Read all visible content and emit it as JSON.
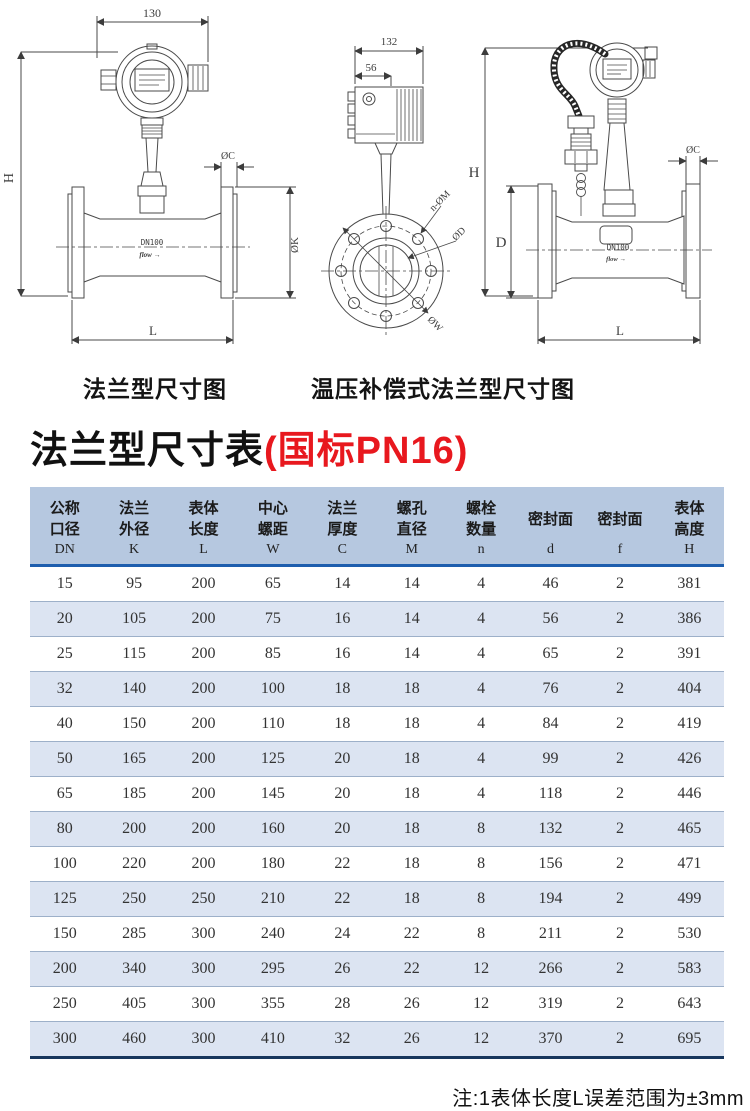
{
  "title": {
    "main": "法兰型尺寸表",
    "suffix": "(国标PN16)"
  },
  "captions": {
    "left": "法兰型尺寸图",
    "right": "温压补偿式法兰型尺寸图"
  },
  "drawing_labels": {
    "left": {
      "top_width": "130",
      "height": "H",
      "flange_thickness": "ØC",
      "flange_diameter": "ØK",
      "length": "L",
      "body": "DN100",
      "brand": "flow →"
    },
    "right": {
      "top_width": "132",
      "head_width": "56",
      "height": "H",
      "flange_od": "D",
      "flange_thickness": "ØC",
      "length": "L",
      "bolt_holes": "n-ØM",
      "bore": "ØD",
      "bolt_circle": "ØW",
      "body": "DN100",
      "brand": "flow →"
    }
  },
  "table": {
    "columns": [
      {
        "cn": [
          "公称",
          "口径"
        ],
        "symbol": "DN"
      },
      {
        "cn": [
          "法兰",
          "外径"
        ],
        "symbol": "K"
      },
      {
        "cn": [
          "表体",
          "长度"
        ],
        "symbol": "L"
      },
      {
        "cn": [
          "中心",
          "螺距"
        ],
        "symbol": "W"
      },
      {
        "cn": [
          "法兰",
          "厚度"
        ],
        "symbol": "C"
      },
      {
        "cn": [
          "螺孔",
          "直径"
        ],
        "symbol": "M"
      },
      {
        "cn": [
          "螺栓",
          "数量"
        ],
        "symbol": "n"
      },
      {
        "cn": [
          "密封面"
        ],
        "symbol": "d"
      },
      {
        "cn": [
          "密封面"
        ],
        "symbol": "f"
      },
      {
        "cn": [
          "表体",
          "高度"
        ],
        "symbol": "H"
      }
    ],
    "rows": [
      [
        "15",
        "95",
        "200",
        "65",
        "14",
        "14",
        "4",
        "46",
        "2",
        "381"
      ],
      [
        "20",
        "105",
        "200",
        "75",
        "16",
        "14",
        "4",
        "56",
        "2",
        "386"
      ],
      [
        "25",
        "115",
        "200",
        "85",
        "16",
        "14",
        "4",
        "65",
        "2",
        "391"
      ],
      [
        "32",
        "140",
        "200",
        "100",
        "18",
        "18",
        "4",
        "76",
        "2",
        "404"
      ],
      [
        "40",
        "150",
        "200",
        "110",
        "18",
        "18",
        "4",
        "84",
        "2",
        "419"
      ],
      [
        "50",
        "165",
        "200",
        "125",
        "20",
        "18",
        "4",
        "99",
        "2",
        "426"
      ],
      [
        "65",
        "185",
        "200",
        "145",
        "20",
        "18",
        "4",
        "118",
        "2",
        "446"
      ],
      [
        "80",
        "200",
        "200",
        "160",
        "20",
        "18",
        "8",
        "132",
        "2",
        "465"
      ],
      [
        "100",
        "220",
        "200",
        "180",
        "22",
        "18",
        "8",
        "156",
        "2",
        "471"
      ],
      [
        "125",
        "250",
        "250",
        "210",
        "22",
        "18",
        "8",
        "194",
        "2",
        "499"
      ],
      [
        "150",
        "285",
        "300",
        "240",
        "24",
        "22",
        "8",
        "211",
        "2",
        "530"
      ],
      [
        "200",
        "340",
        "300",
        "295",
        "26",
        "22",
        "12",
        "266",
        "2",
        "583"
      ],
      [
        "250",
        "405",
        "300",
        "355",
        "28",
        "26",
        "12",
        "319",
        "2",
        "643"
      ],
      [
        "300",
        "460",
        "300",
        "410",
        "32",
        "26",
        "12",
        "370",
        "2",
        "695"
      ]
    ]
  },
  "note": "注:1表体长度L误差范围为±3mm",
  "colors": {
    "header_bg": "#b6c8e0",
    "row_alt_bg": "#dce4f2",
    "header_rule": "#1e5eae",
    "bottom_rule": "#17365d",
    "title_red": "#e8181e",
    "line": "#4a4a4a"
  }
}
